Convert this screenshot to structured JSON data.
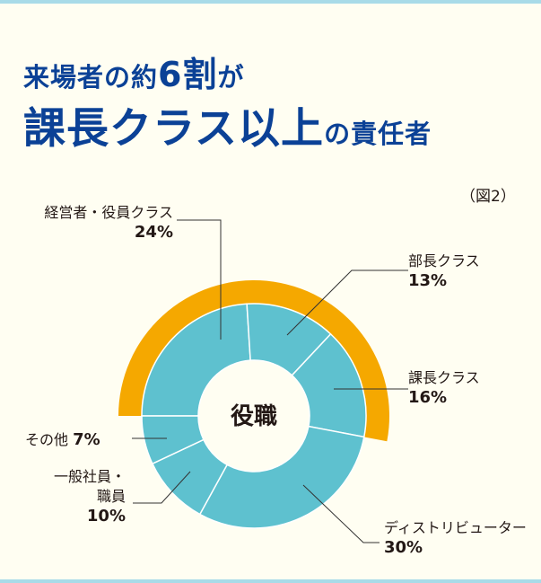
{
  "title": {
    "line1_pre": "来場者の約",
    "line1_big": "6割",
    "line1_post": "が",
    "line2_big": "課長クラス以上",
    "line2_post": "の責任者"
  },
  "figure_label": "（図2）",
  "colors": {
    "segment": "#5ec1cf",
    "highlight": "#f5a800",
    "title": "#0b4196",
    "background": "#fffef2"
  },
  "chart_data": {
    "type": "pie",
    "variant": "donut",
    "center_label": "役職",
    "start_angle_deg": 270,
    "direction": "clockwise",
    "slices": [
      {
        "label": "経営者・役員クラス",
        "value": 24,
        "value_label": "24%"
      },
      {
        "label": "部長クラス",
        "value": 13,
        "value_label": "13%"
      },
      {
        "label": "課長クラス",
        "value": 16,
        "value_label": "16%"
      },
      {
        "label": "ディストリビューター",
        "value": 30,
        "value_label": "30%"
      },
      {
        "label": "一般社員・職員",
        "value": 10,
        "value_label": "10%"
      },
      {
        "label": "その他",
        "value": 7,
        "value_label": "7%"
      }
    ],
    "highlight": {
      "slices": [
        "経営者・役員クラス",
        "部長クラス",
        "課長クラス"
      ],
      "total": 53
    }
  },
  "labels": {
    "executive": "経営者・役員クラス",
    "general_1": "一般社員・",
    "general_2": "職員"
  }
}
